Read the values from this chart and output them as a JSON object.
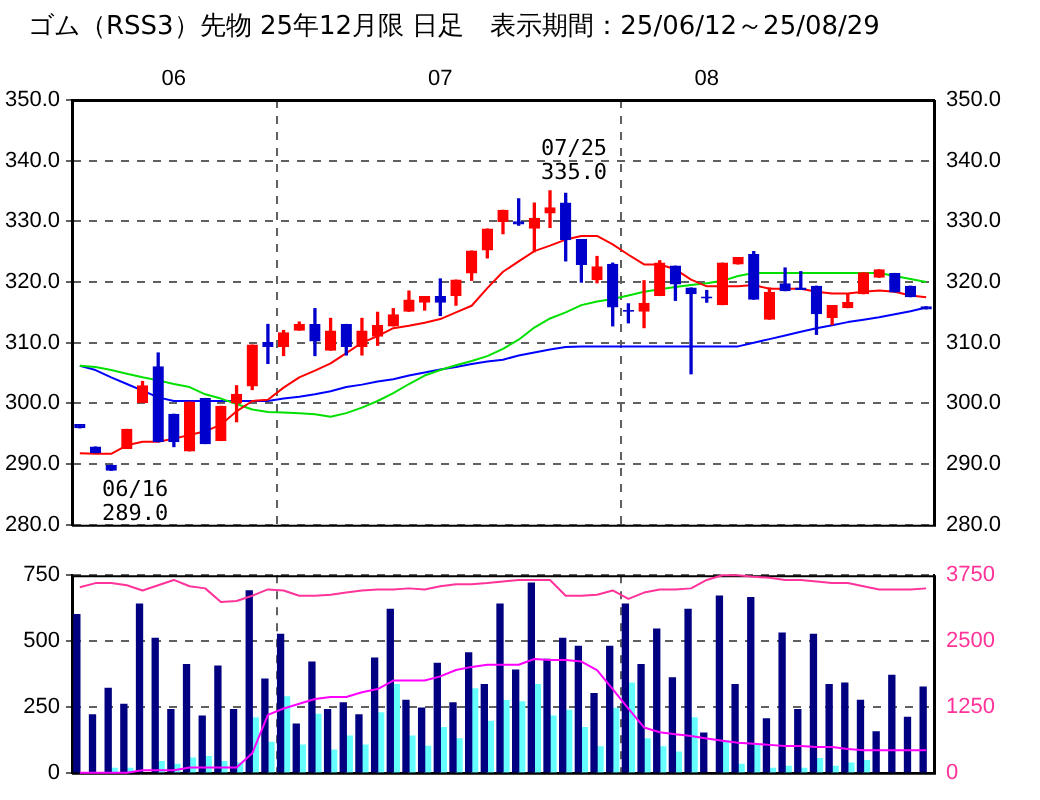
{
  "chart_data": [
    {
      "type": "candlestick",
      "title": "ゴム（RSS3）先物 25年12月限 日足　表示期間：25/06/12～25/08/29",
      "categories": [
        null,
        null,
        null,
        null,
        null,
        null,
        "06",
        null,
        null,
        null,
        null,
        null,
        null,
        null,
        null,
        null,
        null,
        null,
        null,
        null,
        null,
        null,
        null,
        "07",
        null,
        null,
        null,
        null,
        null,
        null,
        null,
        null,
        null,
        null,
        null,
        null,
        null,
        null,
        null,
        null,
        "08",
        null,
        null,
        null,
        null,
        null,
        null,
        null,
        null,
        null,
        null,
        null,
        null,
        null,
        null
      ],
      "ohlc": [
        [
          296.5,
          296.5,
          296.0,
          296.0
        ],
        [
          292.8,
          292.8,
          291.9,
          291.9
        ],
        [
          289.8,
          289.8,
          289.0,
          289.0
        ],
        [
          292.6,
          295.7,
          292.6,
          295.7
        ],
        [
          300.2,
          303.6,
          300.2,
          302.9
        ],
        [
          306.0,
          308.3,
          293.7,
          293.7
        ],
        [
          298.2,
          298.2,
          292.9,
          293.7
        ],
        [
          292.2,
          300.2,
          292.2,
          300.2
        ],
        [
          300.8,
          300.8,
          293.4,
          293.4
        ],
        [
          293.9,
          299.5,
          293.9,
          299.5
        ],
        [
          300.1,
          302.9,
          297.0,
          301.5
        ],
        [
          302.9,
          309.6,
          302.3,
          309.6
        ],
        [
          310.0,
          313.0,
          306.6,
          309.4
        ],
        [
          309.4,
          312.0,
          307.9,
          311.6
        ],
        [
          312.1,
          313.4,
          312.1,
          313.0
        ],
        [
          313.0,
          315.6,
          307.9,
          310.3
        ],
        [
          308.8,
          314.0,
          308.8,
          311.9
        ],
        [
          313.0,
          313.0,
          308.0,
          309.4
        ],
        [
          309.4,
          314.0,
          308.0,
          311.9
        ],
        [
          311.1,
          315.0,
          309.6,
          312.8
        ],
        [
          312.8,
          315.6,
          312.8,
          314.6
        ],
        [
          315.2,
          318.5,
          315.2,
          317.0
        ],
        [
          316.7,
          317.6,
          315.4,
          317.6
        ],
        [
          317.6,
          320.5,
          314.5,
          316.7
        ],
        [
          317.8,
          320.3,
          316.2,
          320.3
        ],
        [
          321.5,
          325.1,
          320.3,
          325.1
        ],
        [
          325.3,
          328.7,
          324.0,
          328.7
        ],
        [
          330.0,
          331.8,
          328.0,
          331.8
        ],
        [
          329.9,
          333.7,
          329.4,
          329.6
        ],
        [
          328.9,
          333.0,
          325.0,
          330.5
        ],
        [
          331.4,
          335.0,
          329.0,
          332.2
        ],
        [
          333.0,
          334.6,
          323.5,
          327.0
        ],
        [
          327.0,
          327.0,
          320.0,
          322.9
        ],
        [
          320.4,
          324.2,
          319.9,
          322.5
        ],
        [
          322.9,
          323.1,
          312.8,
          315.9
        ],
        [
          315.3,
          316.4,
          313.3,
          315.2
        ],
        [
          315.2,
          320.2,
          312.5,
          316.5
        ],
        [
          317.8,
          323.5,
          317.8,
          323.1
        ],
        [
          322.6,
          322.6,
          317.0,
          319.7
        ],
        [
          319.0,
          319.0,
          304.9,
          318.1
        ],
        [
          317.5,
          318.6,
          316.7,
          317.4
        ],
        [
          316.3,
          323.1,
          316.3,
          323.1
        ],
        [
          323.0,
          324.0,
          323.0,
          324.0
        ],
        [
          324.5,
          325.0,
          317.2,
          317.2
        ],
        [
          313.9,
          319.0,
          313.9,
          318.3
        ],
        [
          319.7,
          322.3,
          318.6,
          318.6
        ],
        [
          319.0,
          321.7,
          318.8,
          318.8
        ],
        [
          319.3,
          319.3,
          311.4,
          314.8
        ],
        [
          314.2,
          316.1,
          313.0,
          316.1
        ],
        [
          315.8,
          318.0,
          315.8,
          316.6
        ],
        [
          318.1,
          321.5,
          318.1,
          321.5
        ],
        [
          320.8,
          322.0,
          320.8,
          322.0
        ],
        [
          321.4,
          321.4,
          318.4,
          318.4
        ],
        [
          319.3,
          319.3,
          317.6,
          317.6
        ],
        [
          315.9,
          315.9,
          315.6,
          315.6
        ]
      ],
      "colors": [
        "#0000cc",
        "#0000cc",
        "#0000cc",
        "#ff0000",
        "#ff0000",
        "#0000cc",
        "#0000cc",
        "#ff0000",
        "#0000cc",
        "#ff0000",
        "#ff0000",
        "#ff0000",
        "#0000cc",
        "#ff0000",
        "#ff0000",
        "#0000cc",
        "#ff0000",
        "#0000cc",
        "#ff0000",
        "#ff0000",
        "#ff0000",
        "#ff0000",
        "#ff0000",
        "#0000cc",
        "#ff0000",
        "#ff0000",
        "#ff0000",
        "#ff0000",
        "#0000cc",
        "#ff0000",
        "#ff0000",
        "#0000cc",
        "#0000cc",
        "#ff0000",
        "#0000cc",
        "#0000cc",
        "#ff0000",
        "#ff0000",
        "#0000cc",
        "#0000cc",
        "#0000cc",
        "#ff0000",
        "#ff0000",
        "#0000cc",
        "#ff0000",
        "#0000cc",
        "#0000cc",
        "#0000cc",
        "#ff0000",
        "#ff0000",
        "#ff0000",
        "#ff0000",
        "#0000cc",
        "#0000cc",
        "#0000cc"
      ],
      "series": [
        {
          "type": "line",
          "color": "#ff0000",
          "values": [
            291.8,
            291.7,
            291.7,
            293.1,
            293.7,
            293.7,
            294.2,
            294.8,
            295.4,
            296.5,
            298.7,
            300.4,
            300.6,
            302.6,
            304.3,
            305.4,
            306.6,
            308.3,
            310.0,
            311.1,
            312.4,
            312.8,
            313.3,
            313.9,
            315.0,
            316.1,
            319.0,
            321.7,
            323.4,
            325.1,
            326.0,
            327.0,
            327.6,
            327.6,
            326.2,
            324.5,
            322.9,
            322.9,
            322.1,
            320.4,
            319.3,
            319.3,
            319.3,
            319.5,
            318.9,
            318.9,
            318.9,
            318.4,
            318.1,
            318.1,
            318.4,
            318.6,
            318.4,
            317.8,
            317.5
          ]
        },
        {
          "type": "line",
          "color": "#00e000",
          "values": [
            306.2,
            306.0,
            305.5,
            304.9,
            304.3,
            303.8,
            303.2,
            302.7,
            301.5,
            300.8,
            299.9,
            299.0,
            298.6,
            298.5,
            298.4,
            298.2,
            297.8,
            298.4,
            299.3,
            300.4,
            301.7,
            303.2,
            304.6,
            305.5,
            306.3,
            307.0,
            307.8,
            309.0,
            310.5,
            312.5,
            314.0,
            315.0,
            316.2,
            316.8,
            317.2,
            317.8,
            318.4,
            318.8,
            319.2,
            319.5,
            319.8,
            320.2,
            321.0,
            321.5,
            321.5,
            321.5,
            321.5,
            321.5,
            321.5,
            321.5,
            321.5,
            321.5,
            321.0,
            320.5,
            320.0
          ]
        },
        {
          "type": "line",
          "color": "#0000ff",
          "values": [
            306.2,
            305.5,
            304.3,
            303.2,
            302.1,
            301.0,
            300.4,
            300.4,
            300.4,
            300.4,
            300.4,
            300.4,
            300.4,
            300.8,
            301.1,
            301.5,
            302.0,
            302.7,
            303.1,
            303.6,
            304.0,
            304.6,
            305.1,
            305.6,
            306.0,
            306.5,
            306.9,
            307.2,
            307.9,
            308.4,
            308.9,
            309.3,
            309.4,
            309.4,
            309.4,
            309.4,
            309.4,
            309.4,
            309.4,
            309.4,
            309.4,
            309.4,
            309.4,
            310.0,
            310.6,
            311.2,
            311.8,
            312.4,
            312.9,
            313.4,
            313.8,
            314.2,
            314.7,
            315.2,
            315.8
          ]
        }
      ],
      "ylim": [
        280,
        350
      ],
      "yticks": [
        {
          "value": 280,
          "label": "280.0"
        },
        {
          "value": 290,
          "label": "290.0"
        },
        {
          "value": 300,
          "label": "300.0"
        },
        {
          "value": 310,
          "label": "310.0"
        },
        {
          "value": 320,
          "label": "320.0"
        },
        {
          "value": 330,
          "label": "330.0"
        },
        {
          "value": 340,
          "label": "340.0"
        },
        {
          "value": 350,
          "label": "350.0"
        }
      ],
      "y2lim": [
        280,
        350
      ],
      "y2ticks": [
        {
          "value": 280,
          "label": "280.0"
        },
        {
          "value": 290,
          "label": "290.0"
        },
        {
          "value": 300,
          "label": "300.0"
        },
        {
          "value": 310,
          "label": "310.0"
        },
        {
          "value": 320,
          "label": "320.0"
        },
        {
          "value": 330,
          "label": "330.0"
        },
        {
          "value": 340,
          "label": "340.0"
        },
        {
          "value": 350,
          "label": "350.0"
        }
      ],
      "annotations": [
        "06/16\n289.0",
        "07/25\n335.0"
      ],
      "grid": "y",
      "legend": false
    },
    {
      "type": "bar",
      "categories": [
        null,
        null,
        null,
        null,
        null,
        null,
        null,
        null,
        null,
        null,
        null,
        null,
        null,
        null,
        null,
        null,
        null,
        null,
        null,
        null,
        null,
        null,
        null,
        null,
        null,
        null,
        null,
        null,
        null,
        null,
        null,
        null,
        null,
        null,
        null,
        null,
        null,
        null,
        null,
        null,
        null,
        null,
        null,
        null,
        null,
        null,
        null,
        null,
        null,
        null,
        null,
        null,
        null,
        null,
        null
      ],
      "series": [
        {
          "type": "bar",
          "color": "#000080",
          "values": [
            600,
            220,
            320,
            260,
            640,
            510,
            240,
            410,
            215,
            405,
            240,
            690,
            355,
            525,
            185,
            420,
            240,
            265,
            220,
            435,
            620,
            275,
            245,
            415,
            265,
            455,
            335,
            640,
            390,
            720,
            430,
            510,
            480,
            300,
            480,
            640,
            410,
            545,
            360,
            620,
            150,
            670,
            335,
            665,
            205,
            530,
            240,
            525,
            335,
            340,
            275,
            155,
            370,
            210,
            325
          ]
        },
        {
          "type": "bar",
          "color": "#66ffff",
          "values": [
            null,
            null,
            17,
            17,
            null,
            42,
            32,
            56,
            61,
            42,
            37,
            208,
            115,
            288,
            105,
            222,
            86,
            139,
            105,
            227,
            335,
            139,
            100,
            171,
            129,
            318,
            195,
            274,
            269,
            335,
            215,
            237,
            171,
            98,
            244,
            340,
            129,
            98,
            78,
            208,
            null,
            122,
            32,
            105,
            17,
            24,
            17,
            54,
            24,
            37,
            46,
            null,
            null,
            null,
            null
          ]
        },
        {
          "type": "line",
          "axis": "y2",
          "color": "#ff3399",
          "values": [
            3520,
            3600,
            3600,
            3560,
            3460,
            3560,
            3660,
            3540,
            3500,
            3240,
            3260,
            3360,
            3480,
            3460,
            3360,
            3360,
            3380,
            3420,
            3460,
            3480,
            3480,
            3500,
            3480,
            3540,
            3580,
            3580,
            3600,
            3630,
            3660,
            3660,
            3660,
            3360,
            3360,
            3380,
            3460,
            3300,
            3420,
            3480,
            3480,
            3500,
            3660,
            3750,
            3750,
            3720,
            3700,
            3660,
            3660,
            3630,
            3600,
            3600,
            3540,
            3480,
            3480,
            3480,
            3500
          ]
        },
        {
          "type": "line",
          "axis": "y2",
          "color": "#ff00ff",
          "values": [
            0,
            0,
            0,
            0,
            50,
            50,
            50,
            100,
            100,
            100,
            100,
            370,
            1100,
            1220,
            1310,
            1400,
            1440,
            1440,
            1530,
            1590,
            1750,
            1750,
            1750,
            1830,
            1950,
            2010,
            2050,
            2050,
            2050,
            2160,
            2140,
            2140,
            2110,
            1950,
            1590,
            1220,
            860,
            770,
            730,
            700,
            650,
            610,
            570,
            550,
            530,
            510,
            510,
            490,
            490,
            450,
            430,
            430,
            430,
            430,
            430
          ]
        }
      ],
      "ylim": [
        0,
        750
      ],
      "yticks": [
        0,
        250,
        500,
        750
      ],
      "y2lim": [
        0,
        3750
      ],
      "y2ticks": [
        0,
        1250,
        2500,
        3750
      ],
      "tick_labels": "y",
      "grid": "y",
      "legend": false
    }
  ]
}
